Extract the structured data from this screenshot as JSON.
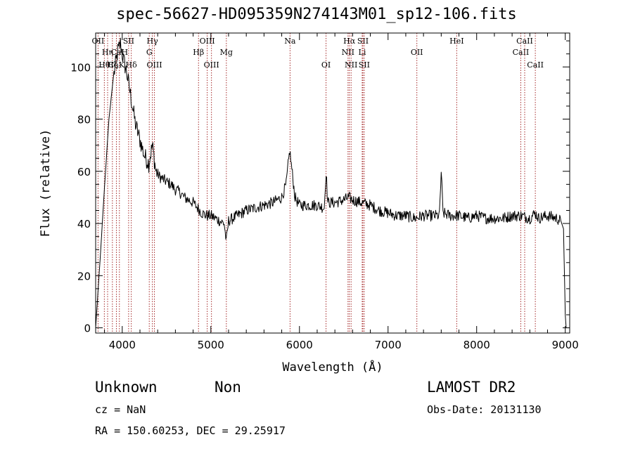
{
  "chart_data": {
    "type": "line",
    "title": "spec-56627-HD095359N274143M01_sp12-106.fits",
    "xlabel": "Wavelength (Å)",
    "ylabel": "Flux (relative)",
    "xlim": [
      3700,
      9050
    ],
    "ylim": [
      -2,
      113
    ],
    "x_ticks": [
      4000,
      5000,
      6000,
      7000,
      8000,
      9000
    ],
    "y_ticks": [
      0,
      20,
      40,
      60,
      80,
      100
    ],
    "grid": false,
    "line_color": "#000000",
    "marker_color": "#a52a2a",
    "line_markers": [
      {
        "label": "OII",
        "wavelength": 3727,
        "row": 0
      },
      {
        "label": "Hη",
        "wavelength": 3835,
        "row": 1
      },
      {
        "label": "Hθ",
        "wavelength": 3798,
        "row": 2
      },
      {
        "label": "Hζ",
        "wavelength": 3889,
        "row": 2
      },
      {
        "label": "CaK",
        "wavelength": 3934,
        "row": 2
      },
      {
        "label": "CaH",
        "wavelength": 3968,
        "row": 1
      },
      {
        "label": "SII",
        "wavelength": 4072,
        "row": 0
      },
      {
        "label": "Hδ",
        "wavelength": 4102,
        "row": 2
      },
      {
        "label": "Hγ",
        "wavelength": 4340,
        "row": 0
      },
      {
        "label": "G",
        "wavelength": 4305,
        "row": 1
      },
      {
        "label": "OIII",
        "wavelength": 4363,
        "row": 2
      },
      {
        "label": "Hβ",
        "wavelength": 4861,
        "row": 1
      },
      {
        "label": "OIII",
        "wavelength": 4959,
        "row": 0
      },
      {
        "label": "OIII",
        "wavelength": 5007,
        "row": 2
      },
      {
        "label": "Mg",
        "wavelength": 5175,
        "row": 1
      },
      {
        "label": "Na",
        "wavelength": 5894,
        "row": 0
      },
      {
        "label": "OI",
        "wavelength": 6300,
        "row": 2
      },
      {
        "label": "NII",
        "wavelength": 6548,
        "row": 1
      },
      {
        "label": "Hα",
        "wavelength": 6563,
        "row": 0
      },
      {
        "label": "NII",
        "wavelength": 6583,
        "row": 2
      },
      {
        "label": "SII",
        "wavelength": 6716,
        "row": 0
      },
      {
        "label": "Li",
        "wavelength": 6708,
        "row": 1
      },
      {
        "label": "SII",
        "wavelength": 6731,
        "row": 2
      },
      {
        "label": "OII",
        "wavelength": 7325,
        "row": 1
      },
      {
        "label": "HeI",
        "wavelength": 7775,
        "row": 0
      },
      {
        "label": "CaII",
        "wavelength": 8498,
        "row": 1
      },
      {
        "label": "CaII",
        "wavelength": 8542,
        "row": 0
      },
      {
        "label": "CaII",
        "wavelength": 8662,
        "row": 2
      }
    ],
    "series": [
      {
        "x": [
          3700,
          3750,
          3800,
          3850,
          3900,
          3950,
          3980,
          4000,
          4020,
          4050,
          4080,
          4100,
          4150,
          4200,
          4250,
          4300,
          4340,
          4380,
          4420,
          4460,
          4500,
          4550,
          4600,
          4650,
          4700,
          4750,
          4800,
          4850,
          4900,
          4950,
          5000,
          5050,
          5100,
          5150,
          5175,
          5200,
          5300,
          5400,
          5500,
          5600,
          5700,
          5800,
          5850,
          5890,
          5950,
          6000,
          6100,
          6200,
          6280,
          6300,
          6320,
          6400,
          6500,
          6560,
          6600,
          6700,
          6800,
          6900,
          7000,
          7100,
          7200,
          7300,
          7400,
          7500,
          7580,
          7600,
          7620,
          7700,
          7800,
          7900,
          8000,
          8100,
          8200,
          8300,
          8400,
          8500,
          8600,
          8660,
          8700,
          8800,
          8900,
          8950,
          8980,
          9000,
          9010
        ],
        "y": [
          0,
          26,
          54,
          80,
          96,
          106,
          109,
          105,
          102,
          98,
          92,
          88,
          78,
          72,
          66,
          63,
          70,
          60,
          58,
          57,
          56,
          55,
          53,
          52,
          50,
          49,
          48,
          46,
          44,
          43,
          43,
          42,
          41,
          40,
          33,
          41,
          43,
          45,
          46,
          47,
          48,
          50,
          55,
          68,
          50,
          47,
          47,
          47,
          46,
          60,
          48,
          48,
          49,
          50,
          49,
          48,
          47,
          45,
          44,
          43,
          43,
          42,
          43,
          43,
          43,
          60,
          44,
          43,
          43,
          42,
          43,
          42,
          42,
          42,
          43,
          43,
          42,
          44,
          42,
          43,
          42,
          41,
          38,
          5,
          0
        ]
      }
    ]
  },
  "footer": {
    "class": "Unknown",
    "subclass": "Non",
    "survey": "LAMOST DR2",
    "cz": "cz = NaN",
    "obs_date": "Obs-Date: 20131130",
    "radec": "RA = 150.60253, DEC =  29.25917"
  }
}
